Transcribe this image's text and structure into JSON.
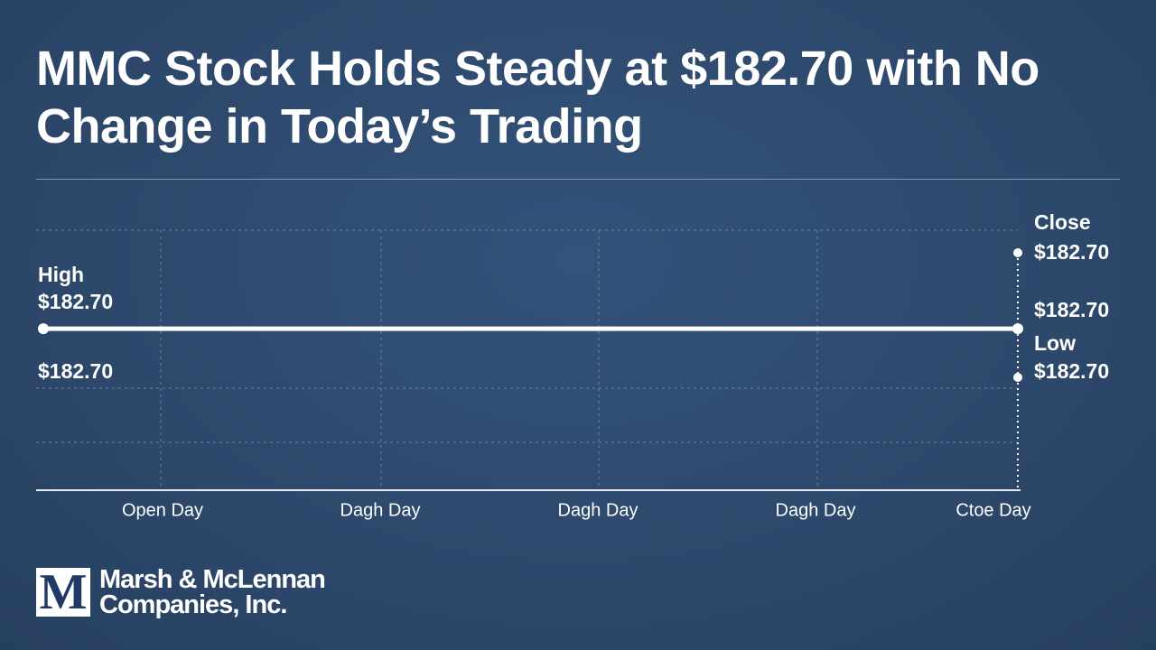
{
  "chart_data": {
    "type": "line",
    "title": "MMC Stock Holds Steady at $182.70 with No Change in Today’s Trading",
    "categories": [
      "Open Day",
      "Dagh Day",
      "Dagh Day",
      "Dagh Day",
      "Ctoe Day"
    ],
    "values": [
      182.7,
      182.7,
      182.7,
      182.7,
      182.7
    ],
    "color": "#ffffff",
    "ylim": [
      182.3,
      183.0
    ],
    "annotations": {
      "high": {
        "label": "High",
        "value_label": "$182.70"
      },
      "left_below": "$182.70",
      "close": {
        "label": "Close",
        "value_label": "$182.70"
      },
      "right_mid": "$182.70",
      "low": {
        "label": "Low",
        "value_label": "$182.70"
      }
    }
  },
  "logo": {
    "mark": "M",
    "line1": "Marsh & McLennan",
    "line2": "Companies, Inc."
  }
}
